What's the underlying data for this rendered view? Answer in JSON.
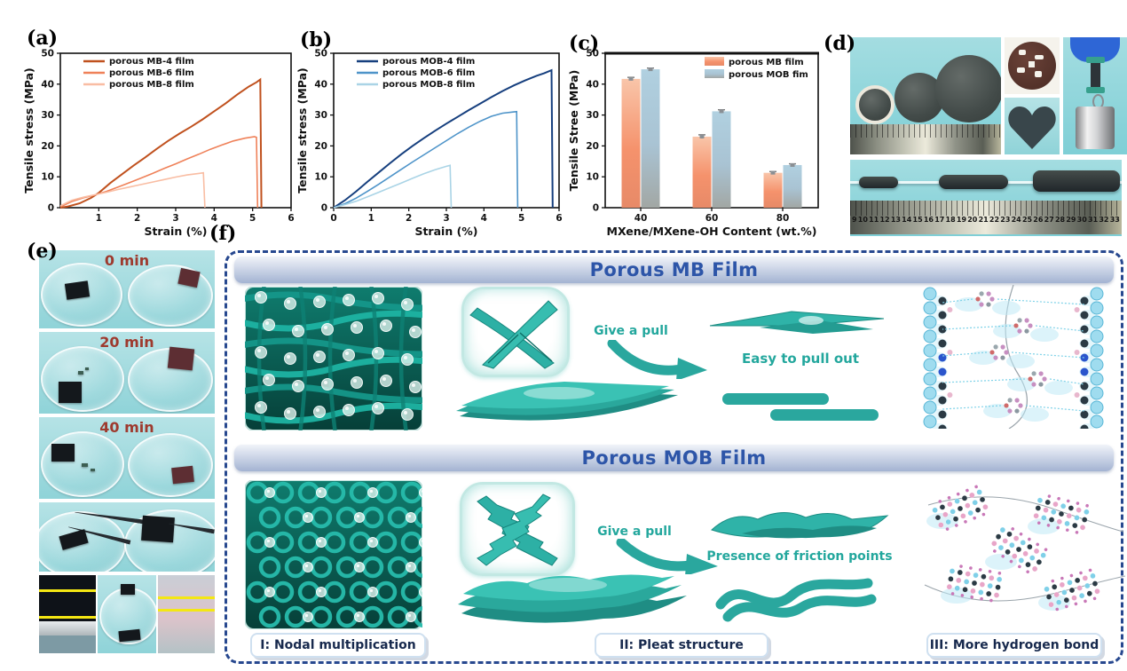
{
  "panel_labels": {
    "a": "(a)",
    "b": "(b)",
    "c": "(c)",
    "d": "(d)",
    "e": "(e)",
    "f": "(f)"
  },
  "chart_data": [
    {
      "id": "a",
      "type": "line",
      "xlabel": "Strain (%)",
      "ylabel": "Tensile stress (MPa)",
      "xlim": [
        0,
        6
      ],
      "ylim": [
        0,
        50
      ],
      "xticks": [
        1,
        2,
        3,
        4,
        5,
        6
      ],
      "yticks": [
        0,
        10,
        20,
        30,
        40,
        50
      ],
      "grid": false,
      "legend_position": "top-left",
      "series": [
        {
          "name": "porous MB-4 film",
          "color": "#c0511e",
          "points": [
            [
              0,
              0
            ],
            [
              0.2,
              0.4
            ],
            [
              0.5,
              1.4
            ],
            [
              0.8,
              3.2
            ],
            [
              1.0,
              4.8
            ],
            [
              1.3,
              8.0
            ],
            [
              1.6,
              10.8
            ],
            [
              1.9,
              13.6
            ],
            [
              2.2,
              16.2
            ],
            [
              2.5,
              19.0
            ],
            [
              2.8,
              21.6
            ],
            [
              3.1,
              24.0
            ],
            [
              3.4,
              26.2
            ],
            [
              3.7,
              28.6
            ],
            [
              4.0,
              31.2
            ],
            [
              4.3,
              33.8
            ],
            [
              4.6,
              36.6
            ],
            [
              4.9,
              39.2
            ],
            [
              5.1,
              40.6
            ],
            [
              5.2,
              41.5
            ],
            [
              5.23,
              0
            ]
          ]
        },
        {
          "name": "porous MB-6 film",
          "color": "#ef8159",
          "points": [
            [
              0,
              0.3
            ],
            [
              0.3,
              2.0
            ],
            [
              0.6,
              3.2
            ],
            [
              0.9,
              4.1
            ],
            [
              1.2,
              5.3
            ],
            [
              1.5,
              6.7
            ],
            [
              1.8,
              8.1
            ],
            [
              2.1,
              9.6
            ],
            [
              2.4,
              11.1
            ],
            [
              2.7,
              12.7
            ],
            [
              3.0,
              14.2
            ],
            [
              3.3,
              15.8
            ],
            [
              3.6,
              17.3
            ],
            [
              3.9,
              18.9
            ],
            [
              4.2,
              20.3
            ],
            [
              4.5,
              21.6
            ],
            [
              4.8,
              22.5
            ],
            [
              5.05,
              23.0
            ],
            [
              5.1,
              22.8
            ],
            [
              5.13,
              0
            ]
          ]
        },
        {
          "name": "porous MB-8 film",
          "color": "#f9bda3",
          "points": [
            [
              0,
              0.6
            ],
            [
              0.3,
              2.4
            ],
            [
              0.6,
              3.4
            ],
            [
              0.9,
              4.2
            ],
            [
              1.2,
              5.0
            ],
            [
              1.5,
              5.9
            ],
            [
              1.8,
              6.7
            ],
            [
              2.1,
              7.5
            ],
            [
              2.4,
              8.3
            ],
            [
              2.7,
              9.1
            ],
            [
              3.0,
              9.9
            ],
            [
              3.3,
              10.6
            ],
            [
              3.6,
              11.1
            ],
            [
              3.72,
              11.3
            ],
            [
              3.76,
              0
            ]
          ]
        }
      ]
    },
    {
      "id": "b",
      "type": "line",
      "xlabel": "Strain (%)",
      "ylabel": "Tensile stress (MPa)",
      "xlim": [
        0,
        6
      ],
      "ylim": [
        0,
        50
      ],
      "xticks": [
        0,
        1,
        2,
        3,
        4,
        5,
        6
      ],
      "yticks": [
        0,
        10,
        20,
        30,
        40,
        50
      ],
      "grid": false,
      "legend_position": "top-left",
      "series": [
        {
          "name": "porous MOB-4 film",
          "color": "#163f7e",
          "points": [
            [
              0,
              0
            ],
            [
              0.3,
              2.4
            ],
            [
              0.6,
              5.3
            ],
            [
              0.9,
              8.4
            ],
            [
              1.2,
              11.4
            ],
            [
              1.5,
              14.4
            ],
            [
              1.8,
              17.3
            ],
            [
              2.1,
              20.0
            ],
            [
              2.4,
              22.5
            ],
            [
              2.7,
              24.9
            ],
            [
              3.0,
              27.2
            ],
            [
              3.3,
              29.4
            ],
            [
              3.6,
              31.6
            ],
            [
              3.9,
              33.7
            ],
            [
              4.2,
              35.8
            ],
            [
              4.5,
              37.8
            ],
            [
              4.8,
              39.6
            ],
            [
              5.1,
              41.2
            ],
            [
              5.4,
              42.7
            ],
            [
              5.6,
              43.5
            ],
            [
              5.8,
              44.5
            ],
            [
              5.83,
              0
            ]
          ]
        },
        {
          "name": "porous MOB-6  film",
          "color": "#4e94c9",
          "points": [
            [
              0,
              0
            ],
            [
              0.3,
              1.3
            ],
            [
              0.6,
              3.1
            ],
            [
              0.9,
              5.3
            ],
            [
              1.2,
              7.6
            ],
            [
              1.5,
              10.0
            ],
            [
              1.8,
              12.4
            ],
            [
              2.1,
              14.8
            ],
            [
              2.4,
              17.1
            ],
            [
              2.7,
              19.4
            ],
            [
              3.0,
              21.7
            ],
            [
              3.3,
              24.0
            ],
            [
              3.6,
              26.1
            ],
            [
              3.9,
              28.0
            ],
            [
              4.2,
              29.6
            ],
            [
              4.5,
              30.6
            ],
            [
              4.8,
              31.0
            ],
            [
              4.87,
              31.1
            ],
            [
              4.9,
              0
            ]
          ]
        },
        {
          "name": "porous MOB-8  film",
          "color": "#aad4e6",
          "points": [
            [
              0,
              0
            ],
            [
              0.3,
              1.0
            ],
            [
              0.6,
              2.1
            ],
            [
              0.9,
              3.5
            ],
            [
              1.2,
              5.0
            ],
            [
              1.5,
              6.5
            ],
            [
              1.8,
              8.0
            ],
            [
              2.1,
              9.5
            ],
            [
              2.4,
              11.0
            ],
            [
              2.7,
              12.3
            ],
            [
              3.0,
              13.4
            ],
            [
              3.1,
              13.7
            ],
            [
              3.13,
              0
            ]
          ]
        }
      ]
    },
    {
      "id": "c",
      "type": "bar",
      "xlabel": "MXene/MXene-OH Content (wt.%)",
      "ylabel": "Tensile Stree (MPa)",
      "ylim": [
        0,
        50
      ],
      "yticks": [
        0,
        10,
        20,
        30,
        40,
        50
      ],
      "categories": [
        "40",
        "60",
        "80"
      ],
      "grid": false,
      "legend_position": "top-right",
      "series": [
        {
          "name": "porous MB film",
          "values": [
            41.7,
            23.0,
            11.3
          ],
          "errors": [
            0.5,
            0.6,
            0.4
          ],
          "gradient": [
            "#f9c5a9",
            "#f5926c",
            "#e78a68"
          ]
        },
        {
          "name": "porous MOB fim",
          "values": [
            44.8,
            31.2,
            13.8
          ],
          "errors": [
            0.4,
            0.5,
            0.4
          ],
          "gradient": [
            "#b0d0e0",
            "#a9c3d3",
            "#a2a7a4"
          ]
        }
      ]
    }
  ],
  "panel_d": {
    "ruler_numbers": [
      "9",
      "10",
      "11",
      "12",
      "13",
      "14",
      "15",
      "16",
      "17",
      "18",
      "19",
      "20",
      "21",
      "22",
      "23",
      "24",
      "25",
      "26",
      "27",
      "28",
      "29",
      "30",
      "31",
      "32",
      "33"
    ]
  },
  "panel_e": {
    "time_labels": [
      "0 min",
      "20 min",
      "40 min"
    ]
  },
  "panel_f": {
    "sections": [
      {
        "title": "Porous MB Film",
        "pull_text": "Give a pull",
        "result_text": "Easy to pull out"
      },
      {
        "title": "Porous MOB Film",
        "pull_text": "Give a pull",
        "result_text": "Presence of friction points"
      }
    ],
    "captions": [
      "I: Nodal multiplication",
      "II: Pleat structure",
      "III: More hydrogen bond"
    ],
    "colors": {
      "teal": "#23a79d",
      "banner_text": "#2d55a8",
      "border": "#27488f"
    }
  }
}
